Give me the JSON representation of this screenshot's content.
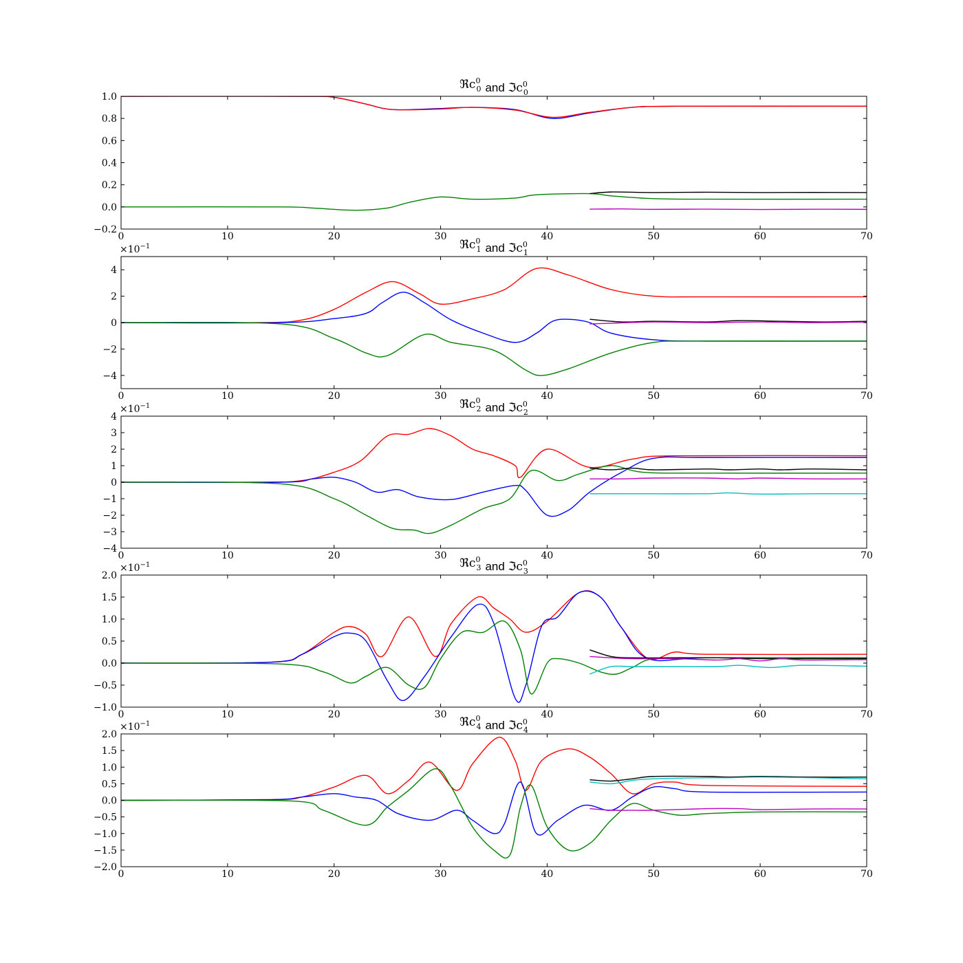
{
  "chart_data": [
    {
      "type": "line",
      "title": {
        "re": "ℜc",
        "sup": "0",
        "sub": "0",
        "conj": "and",
        "im": "ℑc"
      },
      "xlim": [
        0,
        70
      ],
      "ylim": [
        -0.2,
        1.0
      ],
      "xticks": [
        0,
        10,
        20,
        30,
        40,
        50,
        60,
        70
      ],
      "yticks": [
        -0.2,
        0.0,
        0.2,
        0.4,
        0.6,
        0.8,
        1.0
      ],
      "ytick_labels": [
        "−0.2",
        "0.0",
        "0.2",
        "0.4",
        "0.6",
        "0.8",
        "1.0"
      ],
      "offset_text": null,
      "series": [
        {
          "color": "#0000ff",
          "x": [
            0,
            17,
            20,
            23,
            25.5,
            30,
            33,
            37,
            40.5,
            44,
            48,
            52,
            70
          ],
          "y": [
            1.0,
            1.0,
            0.99,
            0.93,
            0.88,
            0.89,
            0.9,
            0.88,
            0.8,
            0.85,
            0.9,
            0.91,
            0.91
          ]
        },
        {
          "color": "#ff0000",
          "x": [
            0,
            17,
            20,
            23,
            25.5,
            30,
            33,
            37,
            40.5,
            44,
            48,
            52,
            70
          ],
          "y": [
            1.0,
            1.0,
            0.99,
            0.93,
            0.88,
            0.885,
            0.9,
            0.875,
            0.81,
            0.855,
            0.9,
            0.91,
            0.91
          ]
        },
        {
          "color": "#008000",
          "x": [
            0,
            15,
            18,
            22,
            25,
            27,
            30,
            33,
            37,
            39,
            44,
            46,
            50,
            55,
            70
          ],
          "y": [
            0.0,
            0.0,
            -0.01,
            -0.03,
            -0.01,
            0.04,
            0.09,
            0.07,
            0.08,
            0.11,
            0.12,
            0.1,
            0.075,
            0.07,
            0.07
          ]
        },
        {
          "color": "#000000",
          "x": [
            44,
            46,
            50,
            55,
            60,
            65,
            70
          ],
          "y": [
            0.12,
            0.135,
            0.13,
            0.133,
            0.13,
            0.131,
            0.13
          ]
        },
        {
          "color": "#bf00bf",
          "x": [
            44,
            47,
            50,
            55,
            60,
            65,
            70
          ],
          "y": [
            -0.02,
            -0.018,
            -0.022,
            -0.02,
            -0.023,
            -0.021,
            -0.022
          ]
        }
      ]
    },
    {
      "type": "line",
      "title": {
        "re": "ℜc",
        "sup": "0",
        "sub": "1",
        "conj": "and",
        "im": "ℑc"
      },
      "xlim": [
        0,
        70
      ],
      "ylim": [
        -5,
        5
      ],
      "xticks": [
        0,
        10,
        20,
        30,
        40,
        50,
        60,
        70
      ],
      "yticks": [
        -4,
        -2,
        0,
        2,
        4
      ],
      "ytick_labels": [
        "−4",
        "−2",
        "0",
        "2",
        "4"
      ],
      "offset_text": {
        "base": "×10",
        "exp": "−1"
      },
      "series": [
        {
          "color": "#ff0000",
          "x": [
            0,
            13,
            17,
            20,
            23,
            25.5,
            28,
            30,
            33,
            36,
            39,
            42,
            46,
            50,
            55,
            70
          ],
          "y": [
            0,
            0,
            0.2,
            1.0,
            2.3,
            3.1,
            2.2,
            1.4,
            1.8,
            2.5,
            4.1,
            3.6,
            2.5,
            2.0,
            1.95,
            1.95
          ]
        },
        {
          "color": "#0000ff",
          "x": [
            0,
            15,
            20,
            23,
            24.5,
            26.5,
            28.5,
            31,
            34,
            37,
            39,
            40.5,
            42,
            44,
            46,
            50,
            55,
            70
          ],
          "y": [
            0,
            0,
            0.3,
            0.7,
            1.5,
            2.3,
            1.5,
            0.2,
            -0.8,
            -1.5,
            -0.8,
            0.1,
            0.25,
            0.0,
            -0.8,
            -1.3,
            -1.4,
            -1.4
          ]
        },
        {
          "color": "#008000",
          "x": [
            0,
            15,
            20,
            23,
            25,
            28.5,
            31,
            35,
            38,
            39.5,
            42,
            46,
            50,
            54,
            70
          ],
          "y": [
            0,
            -0.1,
            -1.2,
            -2.3,
            -2.5,
            -0.9,
            -1.5,
            -2.1,
            -3.6,
            -4.0,
            -3.5,
            -2.3,
            -1.5,
            -1.4,
            -1.4
          ]
        },
        {
          "color": "#000000",
          "x": [
            44,
            47,
            50,
            55,
            58,
            62,
            66,
            70
          ],
          "y": [
            0.25,
            0.05,
            0.1,
            0.05,
            0.15,
            0.1,
            0.05,
            0.1
          ]
        },
        {
          "color": "#bf00bf",
          "x": [
            44,
            46,
            50,
            55,
            60,
            65,
            70
          ],
          "y": [
            -0.1,
            -0.05,
            0.05,
            0.0,
            0.05,
            0.0,
            0.05
          ]
        }
      ]
    },
    {
      "type": "line",
      "title": {
        "re": "ℜc",
        "sup": "0",
        "sub": "2",
        "conj": "and",
        "im": "ℑc"
      },
      "xlim": [
        0,
        70
      ],
      "ylim": [
        -4,
        4
      ],
      "xticks": [
        0,
        10,
        20,
        30,
        40,
        50,
        60,
        70
      ],
      "yticks": [
        -4,
        -3,
        -2,
        -1,
        0,
        1,
        2,
        3,
        4
      ],
      "ytick_labels": [
        "−4",
        "−3",
        "−2",
        "−1",
        "0",
        "1",
        "2",
        "3",
        "4"
      ],
      "offset_text": {
        "base": "×10",
        "exp": "−1"
      },
      "series": [
        {
          "color": "#ff0000",
          "x": [
            0,
            13,
            17,
            20,
            22.5,
            25,
            27,
            29,
            31,
            33,
            35,
            37,
            37.5,
            40,
            44,
            48,
            52,
            70
          ],
          "y": [
            0,
            0,
            0.1,
            0.6,
            1.3,
            2.8,
            2.9,
            3.25,
            2.8,
            2.0,
            1.6,
            1.0,
            0.3,
            2.0,
            0.9,
            1.4,
            1.6,
            1.6
          ]
        },
        {
          "color": "#0000ff",
          "x": [
            0,
            15,
            18,
            20,
            22,
            24,
            26,
            28,
            31,
            34,
            37,
            38,
            40,
            42,
            44,
            47,
            50,
            55,
            70
          ],
          "y": [
            0,
            0,
            0.2,
            0.3,
            0.0,
            -0.6,
            -0.45,
            -0.9,
            -1.05,
            -0.6,
            -0.2,
            -0.5,
            -2.0,
            -1.7,
            -0.6,
            0.6,
            1.45,
            1.5,
            1.5
          ]
        },
        {
          "color": "#008000",
          "x": [
            0,
            15,
            20,
            23,
            25.5,
            27.5,
            29,
            31,
            34,
            36.5,
            38.5,
            41,
            43,
            46,
            49,
            55,
            70
          ],
          "y": [
            0,
            -0.1,
            -1.0,
            -2.0,
            -2.8,
            -2.9,
            -3.1,
            -2.6,
            -1.6,
            -1.0,
            0.7,
            0.1,
            0.5,
            1.0,
            0.6,
            0.55,
            0.55
          ]
        },
        {
          "color": "#000000",
          "x": [
            44,
            46,
            48,
            50,
            55,
            57,
            60,
            62,
            65,
            70
          ],
          "y": [
            0.85,
            0.75,
            0.85,
            0.75,
            0.8,
            0.75,
            0.8,
            0.75,
            0.8,
            0.75
          ]
        },
        {
          "color": "#bf00bf",
          "x": [
            44,
            47,
            50,
            55,
            58,
            60,
            65,
            70
          ],
          "y": [
            0.2,
            0.2,
            0.25,
            0.25,
            0.2,
            0.25,
            0.2,
            0.2
          ]
        },
        {
          "color": "#00bfbf",
          "x": [
            44,
            47,
            50,
            55,
            57,
            60,
            65,
            70
          ],
          "y": [
            -0.7,
            -0.7,
            -0.7,
            -0.7,
            -0.65,
            -0.72,
            -0.7,
            -0.7
          ]
        }
      ]
    },
    {
      "type": "line",
      "title": {
        "re": "ℜc",
        "sup": "0",
        "sub": "3",
        "conj": "and",
        "im": "ℑc"
      },
      "xlim": [
        0,
        70
      ],
      "ylim": [
        -1.0,
        2.0
      ],
      "xticks": [
        0,
        10,
        20,
        30,
        40,
        50,
        60,
        70
      ],
      "yticks": [
        -1.0,
        -0.5,
        0.0,
        0.5,
        1.0,
        1.5,
        2.0
      ],
      "ytick_labels": [
        "−1.0",
        "−0.5",
        "0.0",
        "0.5",
        "1.0",
        "1.5",
        "2.0"
      ],
      "offset_text": {
        "base": "×10",
        "exp": "−1"
      },
      "series": [
        {
          "color": "#ff0000",
          "x": [
            0,
            14,
            17,
            20,
            21.5,
            23,
            24.5,
            27,
            29.5,
            31,
            33.5,
            35,
            36.5,
            38,
            40,
            43,
            45,
            47,
            49.5,
            52,
            55,
            70
          ],
          "y": [
            0,
            0.02,
            0.2,
            0.7,
            0.83,
            0.65,
            0.15,
            1.05,
            0.15,
            0.9,
            1.5,
            1.25,
            1.0,
            0.7,
            0.95,
            1.6,
            1.5,
            0.8,
            0.1,
            0.25,
            0.2,
            0.2
          ]
        },
        {
          "color": "#0000ff",
          "x": [
            0,
            14,
            17,
            20,
            21.5,
            23,
            25,
            26.5,
            28.5,
            31,
            33.5,
            35,
            37,
            38,
            39.5,
            41,
            43,
            45,
            47,
            49.5,
            55,
            70
          ],
          "y": [
            0,
            0.02,
            0.2,
            0.6,
            0.68,
            0.5,
            -0.4,
            -0.85,
            -0.3,
            0.6,
            1.33,
            0.9,
            -0.8,
            -0.5,
            0.85,
            1.05,
            1.6,
            1.5,
            0.8,
            0.1,
            0.12,
            0.12
          ]
        },
        {
          "color": "#008000",
          "x": [
            0,
            15,
            19,
            21.5,
            23,
            25,
            27,
            28.5,
            30,
            32,
            34,
            36,
            37.5,
            38.5,
            40,
            41,
            43,
            45,
            46.5,
            48,
            50,
            55,
            70
          ],
          "y": [
            0,
            -0.02,
            -0.2,
            -0.45,
            -0.3,
            -0.1,
            -0.5,
            -0.55,
            0.1,
            0.7,
            0.7,
            0.95,
            0.3,
            -0.7,
            0.0,
            0.1,
            0.0,
            -0.2,
            -0.25,
            -0.1,
            0.1,
            0.12,
            0.12
          ]
        },
        {
          "color": "#000000",
          "x": [
            44,
            46,
            48,
            52,
            56,
            60,
            64,
            70
          ],
          "y": [
            0.3,
            0.15,
            0.12,
            0.12,
            0.12,
            0.1,
            0.1,
            0.1
          ]
        },
        {
          "color": "#bf00bf",
          "x": [
            44,
            46,
            48,
            52,
            56,
            58,
            60,
            62,
            64,
            70
          ],
          "y": [
            0.15,
            0.12,
            0.1,
            0.1,
            0.07,
            0.1,
            0.05,
            0.1,
            0.07,
            0.08
          ]
        },
        {
          "color": "#00bfbf",
          "x": [
            44,
            46,
            48,
            52,
            56,
            58,
            61,
            64,
            70
          ],
          "y": [
            -0.25,
            -0.08,
            -0.08,
            -0.08,
            -0.08,
            -0.05,
            -0.1,
            -0.05,
            -0.07
          ]
        }
      ]
    },
    {
      "type": "line",
      "title": {
        "re": "ℜc",
        "sup": "0",
        "sub": "4",
        "conj": "and",
        "im": "ℑc"
      },
      "xlim": [
        0,
        70
      ],
      "ylim": [
        -2.0,
        2.0
      ],
      "xticks": [
        0,
        10,
        20,
        30,
        40,
        50,
        60,
        70
      ],
      "yticks": [
        -2.0,
        -1.5,
        -1.0,
        -0.5,
        0.0,
        0.5,
        1.0,
        1.5,
        2.0
      ],
      "ytick_labels": [
        "−2.0",
        "−1.5",
        "−1.0",
        "−0.5",
        "0.0",
        "0.5",
        "1.0",
        "1.5",
        "2.0"
      ],
      "offset_text": {
        "base": "×10",
        "exp": "−1"
      },
      "series": [
        {
          "color": "#ff0000",
          "x": [
            0,
            14,
            17,
            20,
            23,
            25,
            27,
            29,
            31.5,
            33,
            35.5,
            37,
            38,
            39.5,
            42,
            44,
            46,
            48,
            50,
            52,
            55,
            70
          ],
          "y": [
            0,
            0.02,
            0.1,
            0.4,
            0.75,
            0.2,
            0.6,
            1.15,
            0.3,
            1.1,
            1.9,
            1.2,
            0.3,
            1.2,
            1.55,
            1.3,
            0.8,
            0.2,
            0.5,
            0.55,
            0.45,
            0.42
          ]
        },
        {
          "color": "#0000ff",
          "x": [
            0,
            14,
            17,
            20,
            22,
            24,
            26,
            29,
            31.5,
            33,
            35,
            36,
            37.5,
            39,
            41,
            43.5,
            46,
            48,
            50,
            52,
            55,
            70
          ],
          "y": [
            0,
            0.02,
            0.1,
            0.2,
            0.1,
            0.0,
            -0.4,
            -0.6,
            -0.3,
            -0.6,
            -1.0,
            -0.7,
            0.55,
            -1.0,
            -0.6,
            -0.15,
            -0.3,
            0.1,
            0.4,
            0.35,
            0.25,
            0.25
          ]
        },
        {
          "color": "#008000",
          "x": [
            0,
            16,
            19,
            23,
            25,
            27,
            29.5,
            31,
            33,
            35,
            36.5,
            37.5,
            38.5,
            40,
            42,
            44,
            46,
            48,
            50,
            52.5,
            55,
            60,
            70
          ],
          "y": [
            0,
            -0.02,
            -0.3,
            -0.75,
            -0.2,
            0.3,
            0.95,
            0.4,
            -0.8,
            -1.5,
            -1.65,
            -0.2,
            0.45,
            -0.8,
            -1.5,
            -1.3,
            -0.6,
            -0.1,
            -0.3,
            -0.45,
            -0.4,
            -0.35,
            -0.35
          ]
        },
        {
          "color": "#000000",
          "x": [
            44,
            46,
            48,
            50,
            55,
            57,
            60,
            65,
            70
          ],
          "y": [
            0.62,
            0.58,
            0.65,
            0.72,
            0.72,
            0.7,
            0.72,
            0.7,
            0.7
          ]
        },
        {
          "color": "#00bfbf",
          "x": [
            44,
            46,
            48,
            50,
            55,
            57,
            60,
            65,
            70
          ],
          "y": [
            0.55,
            0.5,
            0.6,
            0.65,
            0.68,
            0.68,
            0.7,
            0.68,
            0.65
          ]
        },
        {
          "color": "#bf00bf",
          "x": [
            44,
            46,
            48,
            50,
            55,
            58,
            60,
            65,
            70
          ],
          "y": [
            -0.25,
            -0.3,
            -0.3,
            -0.3,
            -0.25,
            -0.25,
            -0.28,
            -0.26,
            -0.26
          ]
        }
      ]
    }
  ]
}
